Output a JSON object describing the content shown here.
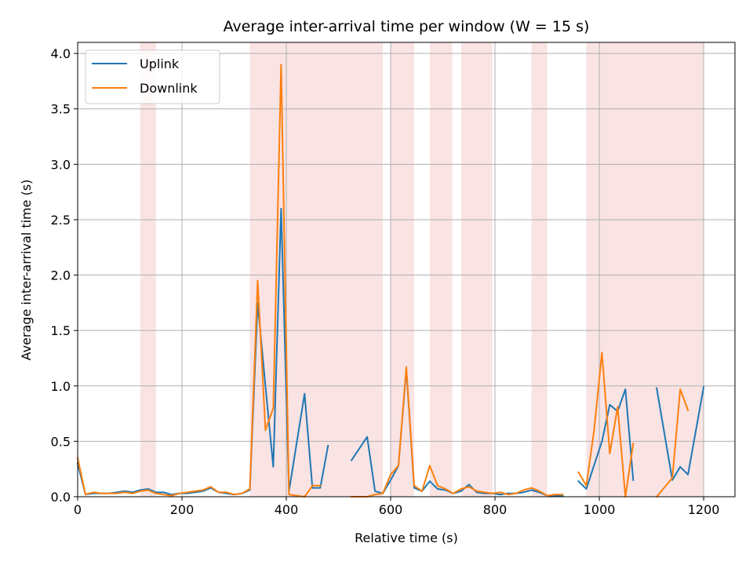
{
  "chart_data": {
    "type": "line",
    "title": "Average inter-arrival time per window (W = 15 s)",
    "xlabel": "Relative time (s)",
    "ylabel": "Average inter-arrival time (s)",
    "xlim": [
      0,
      1260
    ],
    "ylim": [
      0,
      4.1
    ],
    "xticks": [
      0,
      200,
      400,
      600,
      800,
      1000,
      1200
    ],
    "xtick_labels": [
      "0",
      "200",
      "400",
      "600",
      "800",
      "1000",
      "1200"
    ],
    "yticks": [
      0,
      0.5,
      1.0,
      1.5,
      2.0,
      2.5,
      3.0,
      3.5,
      4.0
    ],
    "ytick_labels": [
      "0.0",
      "0.5",
      "1.0",
      "1.5",
      "2.0",
      "2.5",
      "3.0",
      "3.5",
      "4.0"
    ],
    "grid": true,
    "legend_position": "top-left",
    "shaded_regions": [
      [
        120,
        150
      ],
      [
        330,
        585
      ],
      [
        600,
        645
      ],
      [
        675,
        718
      ],
      [
        735,
        795
      ],
      [
        870,
        900
      ],
      [
        975,
        1200
      ]
    ],
    "shade_color": "#f9e3e3",
    "series": [
      {
        "name": "Uplink",
        "color": "#1f77b4",
        "segments": [
          [
            [
              0,
              0.3
            ],
            [
              15,
              0.02
            ],
            [
              30,
              0.03
            ],
            [
              45,
              0.03
            ],
            [
              60,
              0.03
            ],
            [
              75,
              0.04
            ],
            [
              90,
              0.05
            ],
            [
              105,
              0.04
            ],
            [
              120,
              0.06
            ],
            [
              135,
              0.07
            ],
            [
              150,
              0.04
            ],
            [
              165,
              0.04
            ],
            [
              180,
              0.02
            ],
            [
              195,
              0.03
            ],
            [
              210,
              0.03
            ],
            [
              225,
              0.04
            ],
            [
              240,
              0.05
            ],
            [
              255,
              0.08
            ],
            [
              270,
              0.04
            ],
            [
              285,
              0.03
            ],
            [
              300,
              0.02
            ],
            [
              315,
              0.03
            ],
            [
              330,
              0.06
            ],
            [
              345,
              1.75
            ],
            [
              360,
              1.0
            ],
            [
              375,
              0.27
            ],
            [
              390,
              2.6
            ],
            [
              405,
              0.05
            ],
            [
              435,
              0.93
            ],
            [
              450,
              0.08
            ],
            [
              465,
              0.08
            ],
            [
              480,
              0.46
            ]
          ],
          [
            [
              525,
              0.33
            ],
            [
              555,
              0.54
            ],
            [
              570,
              0.05
            ],
            [
              585,
              0.03
            ],
            [
              600,
              0.15
            ],
            [
              615,
              0.28
            ],
            [
              630,
              1.15
            ],
            [
              645,
              0.08
            ],
            [
              660,
              0.05
            ],
            [
              675,
              0.14
            ],
            [
              690,
              0.07
            ],
            [
              705,
              0.06
            ],
            [
              720,
              0.03
            ],
            [
              735,
              0.05
            ],
            [
              750,
              0.11
            ],
            [
              765,
              0.04
            ],
            [
              780,
              0.03
            ],
            [
              795,
              0.03
            ],
            [
              810,
              0.02
            ],
            [
              825,
              0.03
            ],
            [
              840,
              0.03
            ],
            [
              855,
              0.04
            ],
            [
              870,
              0.06
            ],
            [
              885,
              0.04
            ],
            [
              900,
              0.01
            ],
            [
              915,
              0.01
            ],
            [
              930,
              0.01
            ]
          ],
          [
            [
              960,
              0.14
            ],
            [
              975,
              0.07
            ],
            [
              1005,
              0.5
            ],
            [
              1020,
              0.83
            ],
            [
              1035,
              0.77
            ],
            [
              1050,
              0.97
            ],
            [
              1065,
              0.15
            ]
          ],
          [
            [
              1110,
              0.98
            ],
            [
              1140,
              0.15
            ],
            [
              1155,
              0.27
            ],
            [
              1170,
              0.2
            ],
            [
              1200,
              0.99
            ]
          ]
        ]
      },
      {
        "name": "Downlink",
        "color": "#ff7f0e",
        "segments": [
          [
            [
              0,
              0.35
            ],
            [
              15,
              0.02
            ],
            [
              30,
              0.04
            ],
            [
              45,
              0.03
            ],
            [
              60,
              0.03
            ],
            [
              75,
              0.03
            ],
            [
              90,
              0.04
            ],
            [
              105,
              0.03
            ],
            [
              120,
              0.05
            ],
            [
              135,
              0.06
            ],
            [
              150,
              0.03
            ],
            [
              165,
              0.02
            ],
            [
              180,
              0.01
            ],
            [
              195,
              0.03
            ],
            [
              210,
              0.04
            ],
            [
              225,
              0.05
            ],
            [
              240,
              0.06
            ],
            [
              255,
              0.09
            ],
            [
              270,
              0.04
            ],
            [
              285,
              0.04
            ],
            [
              300,
              0.02
            ],
            [
              315,
              0.03
            ],
            [
              330,
              0.07
            ],
            [
              345,
              1.95
            ],
            [
              360,
              0.6
            ],
            [
              375,
              0.8
            ],
            [
              390,
              3.9
            ],
            [
              405,
              0.02
            ],
            [
              420,
              0.01
            ],
            [
              435,
              0.0
            ],
            [
              450,
              0.1
            ],
            [
              465,
              0.1
            ]
          ],
          [
            [
              525,
              0.0
            ],
            [
              555,
              0.0
            ],
            [
              570,
              0.02
            ],
            [
              585,
              0.03
            ],
            [
              600,
              0.2
            ],
            [
              615,
              0.28
            ],
            [
              630,
              1.17
            ],
            [
              645,
              0.1
            ],
            [
              660,
              0.05
            ],
            [
              675,
              0.28
            ],
            [
              690,
              0.1
            ],
            [
              705,
              0.07
            ],
            [
              720,
              0.03
            ],
            [
              735,
              0.07
            ],
            [
              750,
              0.09
            ],
            [
              765,
              0.05
            ],
            [
              780,
              0.04
            ],
            [
              795,
              0.03
            ],
            [
              810,
              0.04
            ],
            [
              825,
              0.02
            ],
            [
              840,
              0.03
            ],
            [
              855,
              0.06
            ],
            [
              870,
              0.08
            ],
            [
              885,
              0.05
            ],
            [
              900,
              0.01
            ],
            [
              915,
              0.02
            ],
            [
              930,
              0.02
            ]
          ],
          [
            [
              960,
              0.22
            ],
            [
              975,
              0.1
            ],
            [
              990,
              0.6
            ],
            [
              1005,
              1.3
            ],
            [
              1020,
              0.39
            ],
            [
              1035,
              0.81
            ],
            [
              1050,
              0.0
            ],
            [
              1065,
              0.48
            ]
          ],
          [
            [
              1110,
              0.0
            ],
            [
              1140,
              0.17
            ],
            [
              1155,
              0.97
            ],
            [
              1170,
              0.78
            ]
          ]
        ]
      }
    ]
  }
}
